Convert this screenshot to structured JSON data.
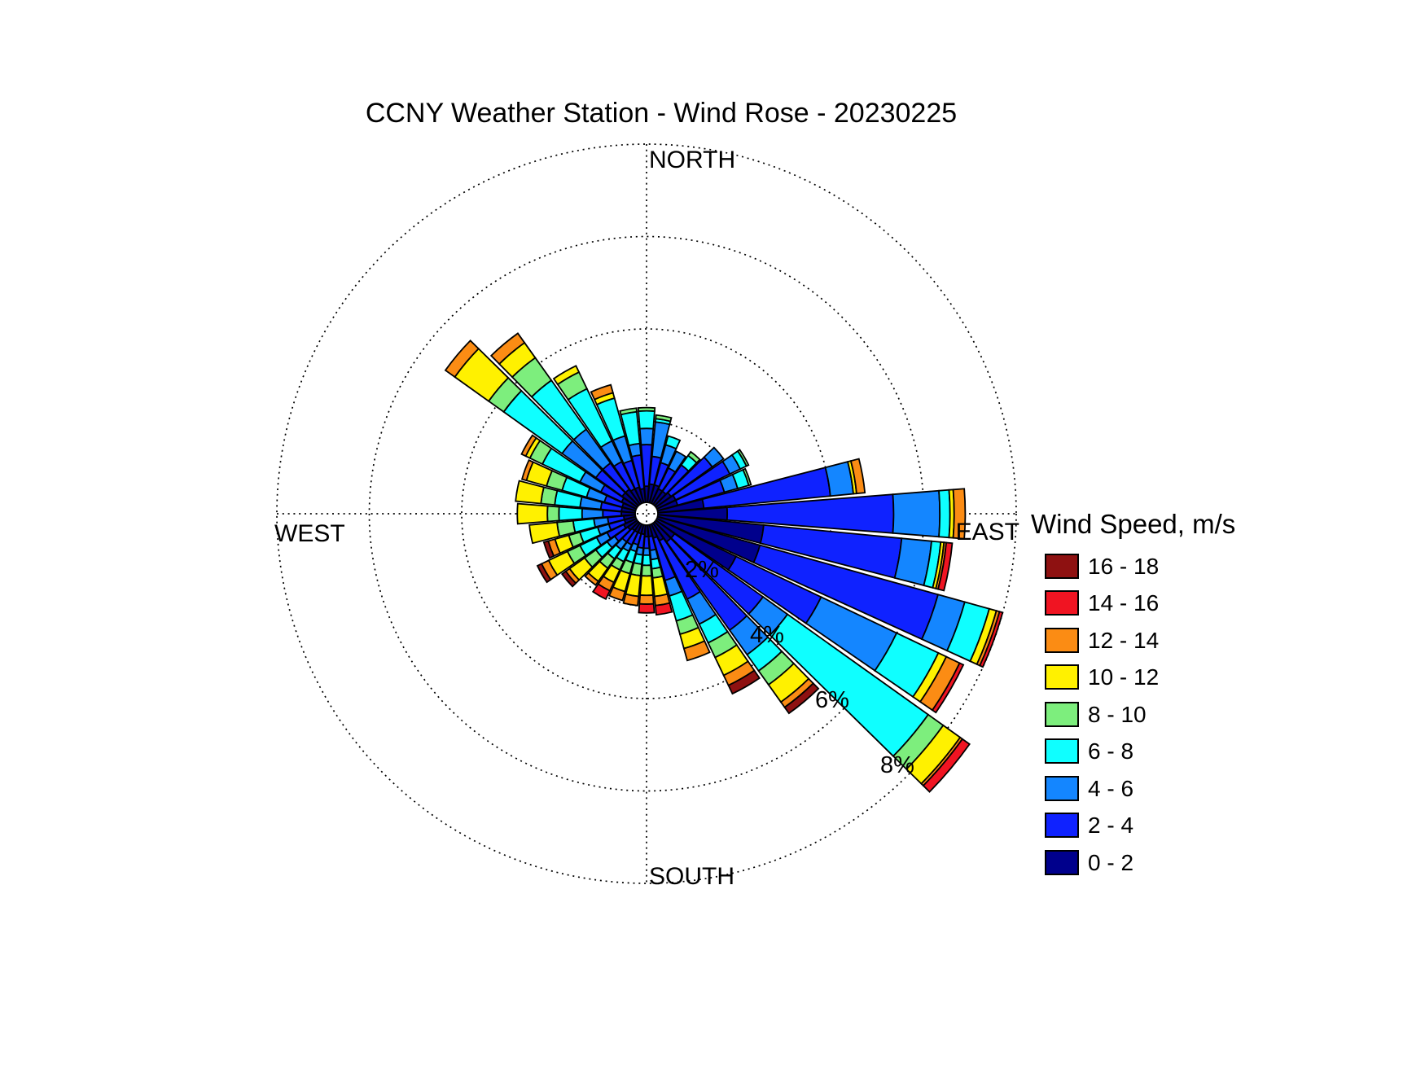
{
  "compass": {
    "north": "NORTH",
    "east": "EAST",
    "south": "SOUTH",
    "west": "WEST"
  },
  "legend": {
    "title": "Wind Speed, m/s",
    "items": [
      {
        "label": "16 - 18",
        "color": "#8E1111"
      },
      {
        "label": "14 - 16",
        "color": "#F01422"
      },
      {
        "label": "12 - 14",
        "color": "#FB8C14"
      },
      {
        "label": "10 - 12",
        "color": "#FFF100"
      },
      {
        "label": "8 - 10",
        "color": "#7DEE7D"
      },
      {
        "label": "6 - 8",
        "color": "#0FFFFF"
      },
      {
        "label": "4 - 6",
        "color": "#1486FF"
      },
      {
        "label": "2 - 4",
        "color": "#0F22FF"
      },
      {
        "label": "0 - 2",
        "color": "#00008C"
      }
    ]
  },
  "chart_data": {
    "type": "windrose",
    "title": "CCNY Weather Station - Wind Rose - 20230225",
    "units": "percent frequency of wind direction, stacked by speed bin",
    "ring_labels": [
      "2%",
      "4%",
      "6%",
      "8%"
    ],
    "rings_percent": [
      2,
      4,
      6,
      8
    ],
    "max_ring_percent": 8,
    "grid": "dotted polar grid, N-S and W-E radial lines",
    "legend_position": "right",
    "speed_bins_mps": [
      "0 - 2",
      "2 - 4",
      "4 - 6",
      "6 - 8",
      "8 - 10",
      "10 - 12",
      "12 - 14",
      "14 - 16",
      "16 - 18"
    ],
    "directions": [
      {
        "deg": 0,
        "values": [
          0.35,
          0.9,
          0.35,
          0.38,
          0.07,
          0,
          0,
          0,
          0
        ]
      },
      {
        "deg": 10,
        "values": [
          0.4,
          0.6,
          0.75,
          0.07,
          0.08,
          0,
          0,
          0,
          0
        ]
      },
      {
        "deg": 20,
        "values": [
          0.4,
          0.5,
          0.4,
          0.2,
          0,
          0,
          0,
          0,
          0
        ]
      },
      {
        "deg": 30,
        "values": [
          0.35,
          0.5,
          0.4,
          0,
          0,
          0,
          0,
          0,
          0
        ]
      },
      {
        "deg": 40,
        "values": [
          0.35,
          0.7,
          0,
          0.25,
          0.1,
          0,
          0,
          0,
          0
        ]
      },
      {
        "deg": 50,
        "values": [
          0.4,
          1.1,
          0.3,
          0,
          0,
          0,
          0,
          0,
          0
        ]
      },
      {
        "deg": 60,
        "values": [
          0.45,
          1.3,
          0.25,
          0.15,
          0.05,
          0,
          0,
          0,
          0
        ]
      },
      {
        "deg": 70,
        "values": [
          0.45,
          1.05,
          0.3,
          0.25,
          0.05,
          0,
          0,
          0,
          0
        ]
      },
      {
        "deg": 80,
        "values": [
          1.0,
          2.75,
          0.5,
          0,
          0,
          0.07,
          0.18,
          0,
          0
        ]
      },
      {
        "deg": 90,
        "values": [
          1.5,
          3.6,
          1.0,
          0.22,
          0,
          0.09,
          0.24,
          0,
          0
        ]
      },
      {
        "deg": 100,
        "values": [
          2.3,
          3.0,
          0.65,
          0.2,
          0,
          0.07,
          0.05,
          0.13,
          0
        ]
      },
      {
        "deg": 110,
        "values": [
          2.3,
          4.0,
          0.6,
          0.55,
          0,
          0.16,
          0.07,
          0.07,
          0
        ]
      },
      {
        "deg": 120,
        "values": [
          1.9,
          2.04,
          1.81,
          1.0,
          0,
          0.19,
          0.32,
          0.09,
          0
        ]
      },
      {
        "deg": 130,
        "values": [
          0.5,
          2.35,
          0.65,
          3.74,
          0.4,
          0.45,
          0.06,
          0.19,
          0
        ]
      },
      {
        "deg": 140,
        "values": [
          0.5,
          2.35,
          0.65,
          0.43,
          0.37,
          0.46,
          0.14,
          0,
          0.16
        ]
      },
      {
        "deg": 150,
        "values": [
          0.4,
          1.4,
          0.6,
          0.45,
          0.35,
          0.43,
          0.24,
          0,
          0.2
        ]
      },
      {
        "deg": 160,
        "values": [
          0.3,
          0.95,
          0.35,
          0.56,
          0.3,
          0.32,
          0.27,
          0,
          0
        ]
      },
      {
        "deg": 170,
        "values": [
          0.25,
          0.3,
          0.2,
          0.2,
          0.2,
          0.4,
          0.2,
          0.2,
          0
        ]
      },
      {
        "deg": 180,
        "values": [
          0.25,
          0.25,
          0.15,
          0.22,
          0.23,
          0.42,
          0.19,
          0.19,
          0
        ]
      },
      {
        "deg": 190,
        "values": [
          0.2,
          0.3,
          0.15,
          0.2,
          0.25,
          0.45,
          0.2,
          0,
          0
        ]
      },
      {
        "deg": 200,
        "values": [
          0.2,
          0.25,
          0.15,
          0.25,
          0.25,
          0.4,
          0.2,
          0,
          0
        ]
      },
      {
        "deg": 210,
        "values": [
          0.2,
          0.3,
          0.15,
          0.25,
          0.2,
          0.3,
          0.2,
          0.2,
          0
        ]
      },
      {
        "deg": 220,
        "values": [
          0.2,
          0.3,
          0.2,
          0.25,
          0.25,
          0.35,
          0.1,
          0,
          0
        ]
      },
      {
        "deg": 230,
        "values": [
          0.25,
          0.35,
          0.2,
          0.3,
          0.3,
          0.4,
          0.1,
          0,
          0.1
        ]
      },
      {
        "deg": 240,
        "values": [
          0.3,
          0.4,
          0.25,
          0.4,
          0.3,
          0.45,
          0.17,
          0,
          0.1
        ]
      },
      {
        "deg": 250,
        "values": [
          0.25,
          0.35,
          0.25,
          0.4,
          0.25,
          0.31,
          0.15,
          0,
          0.1
        ]
      },
      {
        "deg": 260,
        "values": [
          0.25,
          0.35,
          0.3,
          0.45,
          0.35,
          0.6,
          0,
          0,
          0
        ]
      },
      {
        "deg": 270,
        "values": [
          0.3,
          0.4,
          0.45,
          0.5,
          0.25,
          0.65,
          0,
          0,
          0
        ]
      },
      {
        "deg": 280,
        "values": [
          0.3,
          0.45,
          0.45,
          0.55,
          0.3,
          0.55,
          0,
          0,
          0
        ]
      },
      {
        "deg": 290,
        "values": [
          0.3,
          0.4,
          0.4,
          0.55,
          0.35,
          0.45,
          0.1,
          0,
          0
        ]
      },
      {
        "deg": 300,
        "values": [
          0.35,
          0.5,
          0.5,
          0.9,
          0.3,
          0.1,
          0.1,
          0,
          0
        ]
      },
      {
        "deg": 310,
        "values": [
          0.4,
          0.7,
          0.9,
          1.55,
          0.4,
          0.9,
          0.25,
          0,
          0
        ]
      },
      {
        "deg": 320,
        "values": [
          0.4,
          0.7,
          0.9,
          1.3,
          0.6,
          0.4,
          0.25,
          0,
          0
        ]
      },
      {
        "deg": 330,
        "values": [
          0.35,
          0.65,
          0.5,
          1.25,
          0.4,
          0.15,
          0,
          0,
          0
        ]
      },
      {
        "deg": 340,
        "values": [
          0.35,
          0.6,
          0.55,
          0.85,
          0,
          0.12,
          0.18,
          0,
          0
        ]
      },
      {
        "deg": 350,
        "values": [
          0.3,
          0.73,
          0.25,
          0.69,
          0.08,
          0,
          0,
          0,
          0
        ]
      }
    ]
  }
}
